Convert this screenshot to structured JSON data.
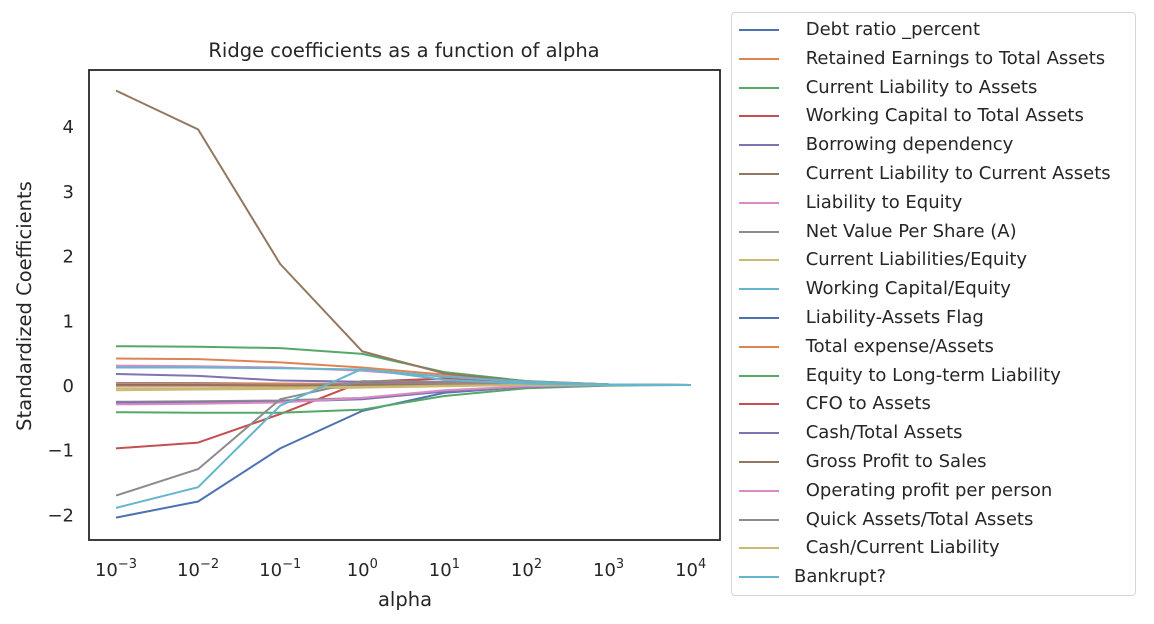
{
  "chart_data": {
    "type": "line",
    "title": "Ridge coefficients as a function of alpha",
    "xlabel": "alpha",
    "ylabel": "Standardized Coefficients",
    "xscale": "log",
    "x": [
      0.001,
      0.01,
      0.1,
      1,
      10,
      100,
      1000,
      10000
    ],
    "x_tick_labels": [
      {
        "base": "10",
        "exp": "−3"
      },
      {
        "base": "10",
        "exp": "−2"
      },
      {
        "base": "10",
        "exp": "−1"
      },
      {
        "base": "10",
        "exp": "0"
      },
      {
        "base": "10",
        "exp": "1"
      },
      {
        "base": "10",
        "exp": "2"
      },
      {
        "base": "10",
        "exp": "3"
      },
      {
        "base": "10",
        "exp": "4"
      }
    ],
    "y_ticks": [
      4,
      3,
      2,
      1,
      0,
      -1,
      -2
    ],
    "y_tick_labels": [
      "4",
      "3",
      "2",
      "1",
      "0",
      "−1",
      "−2"
    ],
    "ylim": [
      -2.35,
      4.85
    ],
    "grid": false,
    "legend_position": "outside-right",
    "series": [
      {
        "name": "Debt ratio _percent",
        "color": "#4c72b0",
        "values": [
          -2.05,
          -1.8,
          -0.98,
          -0.4,
          -0.12,
          -0.03,
          0.0,
          0.0
        ]
      },
      {
        "name": "Retained Earnings to Total Assets",
        "color": "#dd8452",
        "values": [
          0.41,
          0.4,
          0.35,
          0.27,
          0.16,
          0.06,
          0.01,
          0.0
        ]
      },
      {
        "name": "Current Liability to Assets",
        "color": "#55a868",
        "values": [
          0.6,
          0.59,
          0.57,
          0.48,
          0.2,
          0.06,
          0.01,
          0.0
        ]
      },
      {
        "name": "Working Capital to Total Assets",
        "color": "#c44e52",
        "values": [
          -0.98,
          -0.89,
          -0.45,
          0.05,
          0.1,
          0.05,
          0.01,
          0.0
        ]
      },
      {
        "name": "Borrowing dependency",
        "color": "#8172b3",
        "values": [
          0.17,
          0.14,
          0.07,
          0.05,
          0.03,
          0.01,
          0.0,
          0.0
        ]
      },
      {
        "name": "Current Liability to Current Assets",
        "color": "#937860",
        "values": [
          4.55,
          3.95,
          1.87,
          0.52,
          0.18,
          0.05,
          0.01,
          0.0
        ]
      },
      {
        "name": "Liability to Equity",
        "color": "#da8bc3",
        "values": [
          0.3,
          0.29,
          0.27,
          0.22,
          0.13,
          0.05,
          0.01,
          0.0
        ]
      },
      {
        "name": "Net Value Per Share (A)",
        "color": "#8c8c8c",
        "values": [
          -0.26,
          -0.25,
          -0.24,
          -0.2,
          -0.1,
          -0.03,
          0.0,
          0.0
        ]
      },
      {
        "name": "Current Liabilities/Equity",
        "color": "#ccb974",
        "values": [
          -0.08,
          -0.07,
          -0.06,
          -0.04,
          -0.02,
          0.0,
          0.0,
          0.0
        ]
      },
      {
        "name": "Working Capital/Equity",
        "color": "#64b5cd",
        "values": [
          0.27,
          0.27,
          0.26,
          0.24,
          0.13,
          0.05,
          0.01,
          0.0
        ]
      },
      {
        "name": "Liability-Assets Flag",
        "color": "#4c72b0",
        "values": [
          0.03,
          0.03,
          0.02,
          0.02,
          0.01,
          0.0,
          0.0,
          0.0
        ]
      },
      {
        "name": "Total expense/Assets",
        "color": "#dd8452",
        "values": [
          0.02,
          0.02,
          0.02,
          0.01,
          0.01,
          0.0,
          0.0,
          0.0
        ]
      },
      {
        "name": "Equity to Long-term Liability",
        "color": "#55a868",
        "values": [
          -0.42,
          -0.43,
          -0.43,
          -0.38,
          -0.17,
          -0.05,
          -0.01,
          0.0
        ]
      },
      {
        "name": "CFO to Assets",
        "color": "#c44e52",
        "values": [
          0.0,
          0.0,
          -0.01,
          -0.01,
          0.0,
          0.0,
          0.0,
          0.0
        ]
      },
      {
        "name": "Cash/Total Assets",
        "color": "#8172b3",
        "values": [
          -0.27,
          -0.27,
          -0.26,
          -0.22,
          -0.1,
          -0.03,
          0.0,
          0.0
        ]
      },
      {
        "name": "Gross Profit to Sales",
        "color": "#937860",
        "values": [
          -0.01,
          -0.01,
          -0.01,
          0.0,
          0.0,
          0.0,
          0.0,
          0.0
        ]
      },
      {
        "name": "Operating profit per person",
        "color": "#da8bc3",
        "values": [
          -0.3,
          -0.29,
          -0.27,
          -0.2,
          -0.08,
          -0.02,
          0.0,
          0.0
        ]
      },
      {
        "name": "Quick Assets/Total Assets",
        "color": "#8c8c8c",
        "values": [
          -1.71,
          -1.3,
          -0.22,
          0.06,
          0.05,
          0.02,
          0.0,
          0.0
        ]
      },
      {
        "name": "Cash/Current Liability",
        "color": "#ccb974",
        "values": [
          -0.05,
          -0.05,
          -0.04,
          -0.03,
          -0.01,
          0.0,
          0.0,
          0.0
        ]
      },
      {
        "name": "Bankrupt?",
        "color": "#64b5cd",
        "values": [
          -1.9,
          -1.58,
          -0.32,
          0.25,
          0.08,
          0.02,
          0.0,
          0.0
        ]
      }
    ]
  },
  "legend_labels": [
    " Debt ratio _percent",
    " Retained Earnings to Total Assets",
    " Current Liability to Assets",
    " Working Capital to Total Assets",
    " Borrowing dependency",
    " Current Liability to Current Assets",
    " Liability to Equity",
    " Net Value Per Share (A)",
    " Current Liabilities/Equity",
    " Working Capital/Equity",
    " Liability-Assets Flag",
    " Total expense/Assets",
    " Equity to Long-term Liability",
    " CFO to Assets",
    " Cash/Total Assets",
    " Gross Profit to Sales",
    " Operating profit per person",
    " Quick Assets/Total Assets",
    " Cash/Current Liability",
    "Bankrupt?"
  ]
}
